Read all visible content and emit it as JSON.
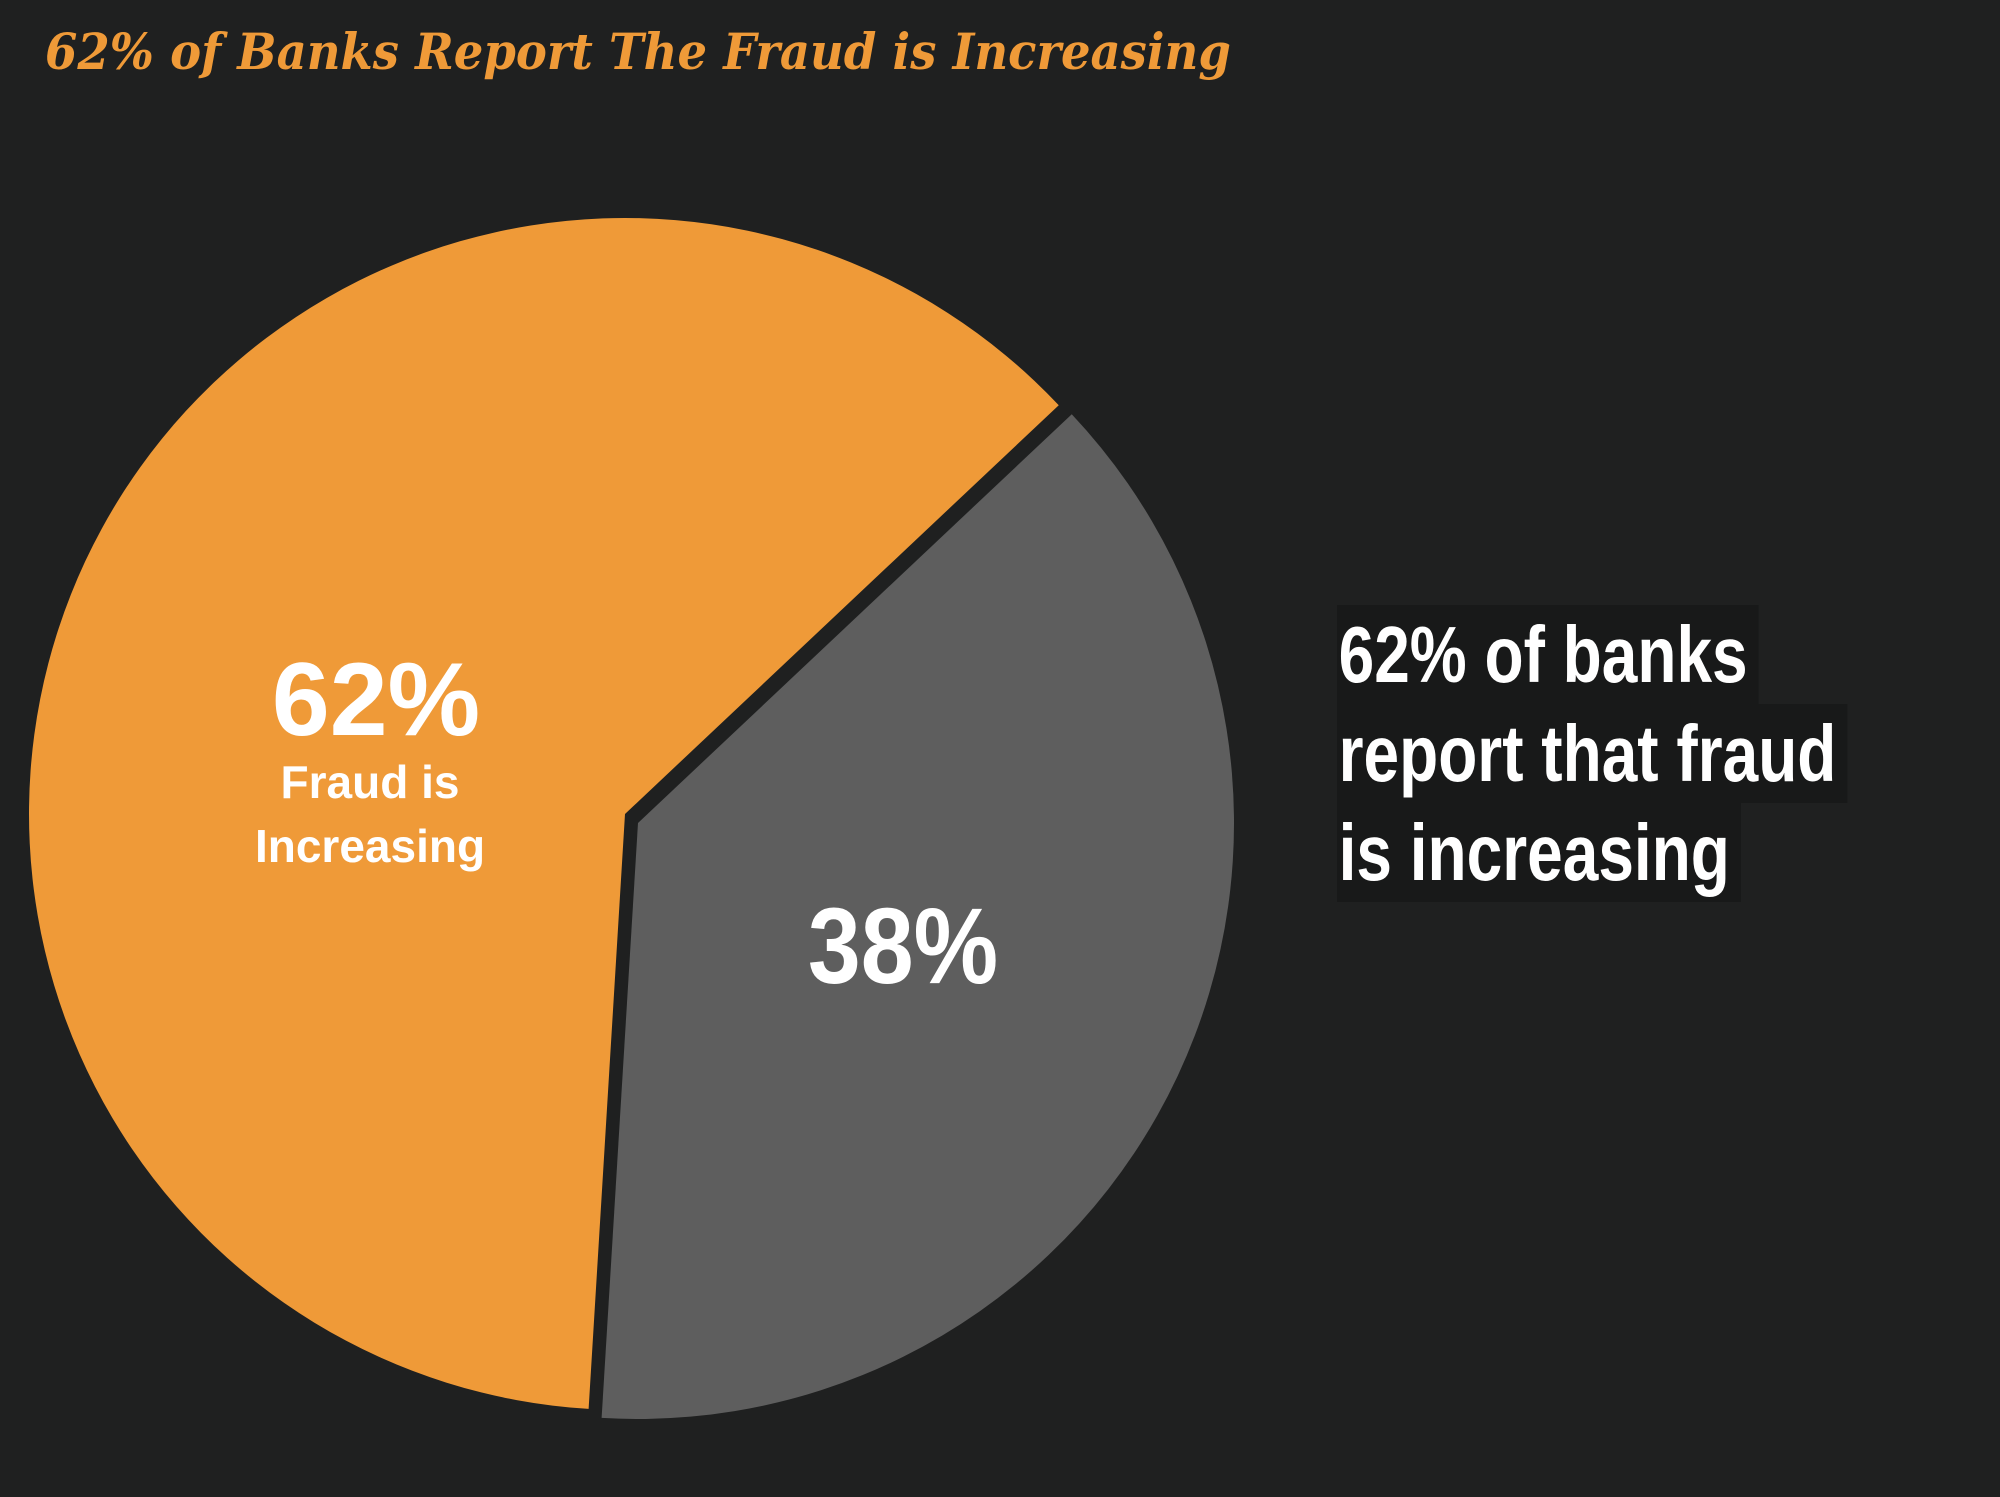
{
  "chart_data": {
    "type": "pie",
    "title": "62% of Banks Report The Fraud is Increasing",
    "slices": [
      {
        "label": "Fraud is Increasing",
        "value": 62,
        "value_label": "62%",
        "label_lines": [
          "Fraud is",
          "Increasing"
        ],
        "color": "#ef9a38"
      },
      {
        "label": "",
        "value": 38,
        "value_label": "38%",
        "color": "#5e5e5e"
      }
    ],
    "annotation_lines": [
      "62% of banks",
      "report that fraud",
      "is increasing"
    ],
    "background": "#1f2020"
  }
}
